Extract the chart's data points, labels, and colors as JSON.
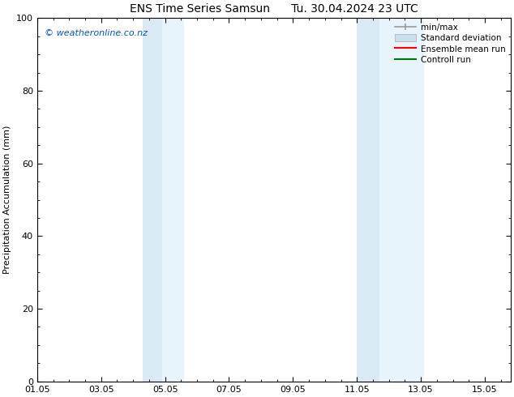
{
  "title_left": "ENS Time Series Samsun",
  "title_right": "Tu. 30.04.2024 23 UTC",
  "ylabel": "Precipitation Accumulation (mm)",
  "ylim": [
    0,
    100
  ],
  "yticks": [
    0,
    20,
    40,
    60,
    80,
    100
  ],
  "xlim": [
    1.0,
    15.8
  ],
  "xtick_labels": [
    "01.05",
    "03.05",
    "05.05",
    "07.05",
    "09.05",
    "11.05",
    "13.05",
    "15.05"
  ],
  "xtick_days": [
    1,
    3,
    5,
    7,
    9,
    11,
    13,
    15
  ],
  "shaded_bands": [
    {
      "x_start_day": 4.3,
      "x_end_day": 4.9,
      "color": "#daeaf5"
    },
    {
      "x_start_day": 4.9,
      "x_end_day": 5.6,
      "color": "#e8f4fb"
    },
    {
      "x_start_day": 11.0,
      "x_end_day": 11.7,
      "color": "#daeaf5"
    },
    {
      "x_start_day": 11.7,
      "x_end_day": 13.1,
      "color": "#e8f4fb"
    }
  ],
  "watermark_text": "© weatheronline.co.nz",
  "watermark_color": "#0055cc",
  "legend_entries": [
    {
      "label": "min/max",
      "type": "errorbar",
      "color": "#999999"
    },
    {
      "label": "Standard deviation",
      "type": "patch",
      "color": "#ccddee"
    },
    {
      "label": "Ensemble mean run",
      "type": "line",
      "color": "#ff0000"
    },
    {
      "label": "Controll run",
      "type": "line",
      "color": "#007700"
    }
  ],
  "bg_color": "#ffffff",
  "plot_bg_color": "#ffffff",
  "font_size_title": 10,
  "font_size_axis": 8,
  "font_size_tick": 8,
  "font_size_legend": 7.5,
  "font_size_watermark": 8
}
